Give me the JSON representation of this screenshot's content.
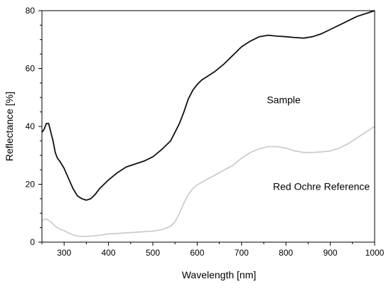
{
  "chart_data": {
    "type": "line",
    "title": "",
    "xlabel": "Wavelength [nm]",
    "ylabel": "Reflectance [%]",
    "xlim": [
      250,
      1000
    ],
    "ylim": [
      0,
      80
    ],
    "x_ticks": [
      300,
      400,
      500,
      600,
      700,
      800,
      900,
      1000
    ],
    "y_ticks": [
      0,
      20,
      40,
      60,
      80
    ],
    "grid": false,
    "legend": "none",
    "annotations": [
      {
        "text": "Sample",
        "x": 795,
        "y": 48
      },
      {
        "text": "Red Ochre Reference",
        "x": 880,
        "y": 18
      }
    ],
    "series": [
      {
        "color": "#111111",
        "x": [
          250,
          255,
          260,
          265,
          270,
          275,
          280,
          285,
          290,
          300,
          310,
          320,
          330,
          340,
          350,
          360,
          370,
          380,
          400,
          420,
          440,
          460,
          480,
          500,
          520,
          540,
          550,
          560,
          570,
          580,
          590,
          600,
          610,
          620,
          640,
          660,
          680,
          700,
          720,
          740,
          760,
          780,
          800,
          820,
          840,
          860,
          880,
          900,
          920,
          940,
          960,
          980,
          1000
        ],
        "y": [
          38,
          39,
          41,
          41,
          38,
          35,
          31,
          29,
          28,
          25.5,
          22,
          18.5,
          16,
          15,
          14.5,
          15,
          16.5,
          18.5,
          21.5,
          24,
          26,
          27,
          28,
          29.5,
          32,
          35,
          38,
          41,
          45,
          49.5,
          52.5,
          54.5,
          56,
          57,
          59,
          61.5,
          64.5,
          67.5,
          69.5,
          71,
          71.5,
          71.2,
          71,
          70.7,
          70.5,
          71,
          72,
          73.5,
          75,
          76.5,
          78,
          79,
          80
        ]
      },
      {
        "color": "#c8c8c8",
        "x": [
          250,
          260,
          270,
          280,
          290,
          300,
          310,
          320,
          330,
          340,
          350,
          370,
          400,
          450,
          500,
          520,
          540,
          550,
          560,
          570,
          580,
          590,
          600,
          620,
          650,
          680,
          700,
          720,
          740,
          760,
          780,
          800,
          820,
          840,
          860,
          880,
          900,
          920,
          940,
          960,
          980,
          1000
        ],
        "y": [
          7.5,
          8,
          7,
          5.5,
          4.5,
          4,
          3.2,
          2.5,
          2.1,
          2,
          2,
          2.2,
          2.8,
          3.3,
          3.8,
          4.3,
          5.5,
          7,
          10,
          13.5,
          16.5,
          18.5,
          19.8,
          21.5,
          24,
          26.5,
          29,
          31,
          32.3,
          33,
          33,
          32.5,
          31.5,
          31,
          31,
          31.2,
          31.5,
          32.5,
          34,
          36,
          38,
          40
        ]
      }
    ]
  }
}
